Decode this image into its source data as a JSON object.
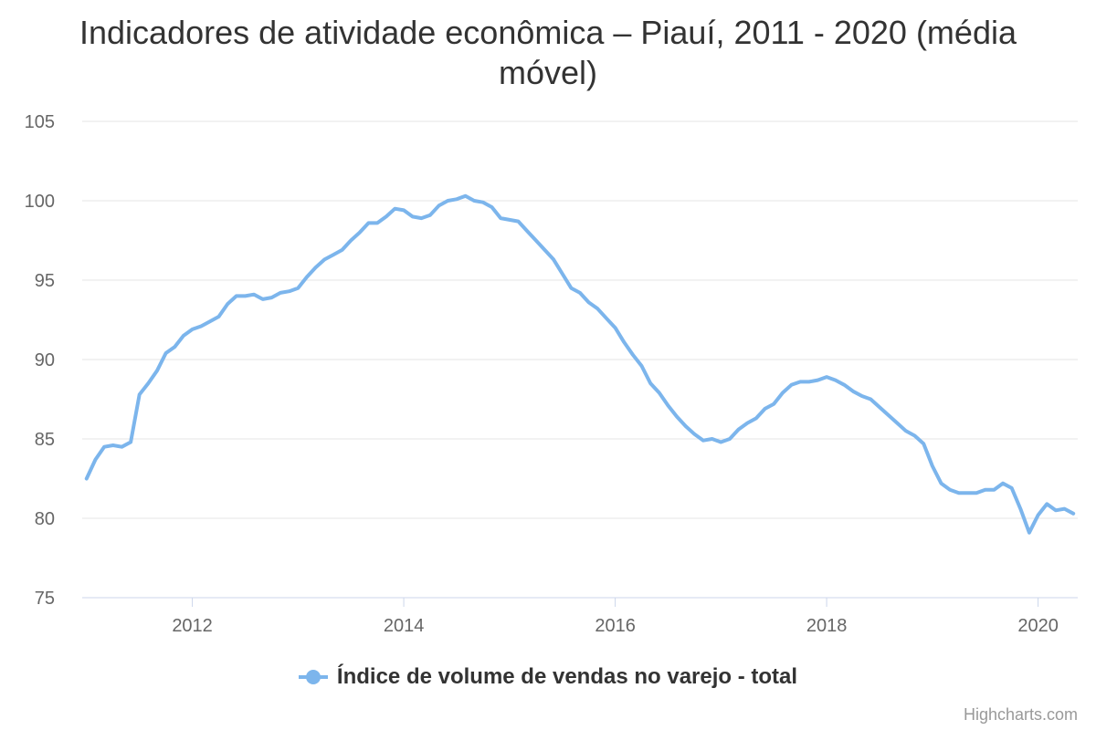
{
  "colors": {
    "series": "#7cb5ec",
    "grid": "#e6e6e6",
    "axis_line": "#ccd6eb",
    "tick_label": "#666666",
    "title": "#333333"
  },
  "credits": "Highcharts.com",
  "chart_data": {
    "type": "line",
    "title": "Indicadores de atividade econômica – Piauí, 2011 - 2020 (média móvel)",
    "xlabel": "",
    "ylabel": "",
    "ylim": [
      75,
      105
    ],
    "y_ticks": [
      "75",
      "80",
      "85",
      "90",
      "95",
      "100",
      "105"
    ],
    "x_ticks": [
      "2012",
      "2014",
      "2016",
      "2018",
      "2020"
    ],
    "x_range": [
      "2011-01",
      "2020-05"
    ],
    "grid": true,
    "legend_position": "bottom-center",
    "series": [
      {
        "name": "Índice de volume de vendas no varejo - total",
        "x": [
          "2011-01",
          "2011-02",
          "2011-03",
          "2011-04",
          "2011-05",
          "2011-06",
          "2011-07",
          "2011-08",
          "2011-09",
          "2011-10",
          "2011-11",
          "2011-12",
          "2012-01",
          "2012-02",
          "2012-03",
          "2012-04",
          "2012-05",
          "2012-06",
          "2012-07",
          "2012-08",
          "2012-09",
          "2012-10",
          "2012-11",
          "2012-12",
          "2013-01",
          "2013-02",
          "2013-03",
          "2013-04",
          "2013-05",
          "2013-06",
          "2013-07",
          "2013-08",
          "2013-09",
          "2013-10",
          "2013-11",
          "2013-12",
          "2014-01",
          "2014-02",
          "2014-03",
          "2014-04",
          "2014-05",
          "2014-06",
          "2014-07",
          "2014-08",
          "2014-09",
          "2014-10",
          "2014-11",
          "2014-12",
          "2015-01",
          "2015-02",
          "2015-03",
          "2015-04",
          "2015-05",
          "2015-06",
          "2015-07",
          "2015-08",
          "2015-09",
          "2015-10",
          "2015-11",
          "2015-12",
          "2016-01",
          "2016-02",
          "2016-03",
          "2016-04",
          "2016-05",
          "2016-06",
          "2016-07",
          "2016-08",
          "2016-09",
          "2016-10",
          "2016-11",
          "2016-12",
          "2017-01",
          "2017-02",
          "2017-03",
          "2017-04",
          "2017-05",
          "2017-06",
          "2017-07",
          "2017-08",
          "2017-09",
          "2017-10",
          "2017-11",
          "2017-12",
          "2018-01",
          "2018-02",
          "2018-03",
          "2018-04",
          "2018-05",
          "2018-06",
          "2018-07",
          "2018-08",
          "2018-09",
          "2018-10",
          "2018-11",
          "2018-12",
          "2019-01",
          "2019-02",
          "2019-03",
          "2019-04",
          "2019-05",
          "2019-06",
          "2019-07",
          "2019-08",
          "2019-09",
          "2019-10",
          "2019-11",
          "2019-12",
          "2020-01",
          "2020-02",
          "2020-03",
          "2020-04",
          "2020-05"
        ],
        "values": [
          82.5,
          83.7,
          84.5,
          84.6,
          84.5,
          84.8,
          87.8,
          88.5,
          89.3,
          90.4,
          90.8,
          91.5,
          91.9,
          92.1,
          92.4,
          92.7,
          93.5,
          94.0,
          94.0,
          94.1,
          93.8,
          93.9,
          94.2,
          94.3,
          94.5,
          95.2,
          95.8,
          96.3,
          96.6,
          96.9,
          97.5,
          98.0,
          98.6,
          98.6,
          99.0,
          99.5,
          99.4,
          99.0,
          98.9,
          99.1,
          99.7,
          100.0,
          100.1,
          100.3,
          100.0,
          99.9,
          99.6,
          98.9,
          98.8,
          98.7,
          98.1,
          97.5,
          96.9,
          96.3,
          95.4,
          94.5,
          94.2,
          93.6,
          93.2,
          92.6,
          92.0,
          91.1,
          90.3,
          89.6,
          88.5,
          87.9,
          87.1,
          86.4,
          85.8,
          85.3,
          84.9,
          85.0,
          84.8,
          85.0,
          85.6,
          86.0,
          86.3,
          86.9,
          87.2,
          87.9,
          88.4,
          88.6,
          88.6,
          88.7,
          88.9,
          88.7,
          88.4,
          88.0,
          87.7,
          87.5,
          87.0,
          86.5,
          86.0,
          85.5,
          85.2,
          84.7,
          83.3,
          82.2,
          81.8,
          81.6,
          81.6,
          81.6,
          81.8,
          81.8,
          82.2,
          81.9,
          80.6,
          79.1,
          80.2,
          80.9,
          80.5,
          80.6,
          80.3
        ]
      }
    ]
  }
}
